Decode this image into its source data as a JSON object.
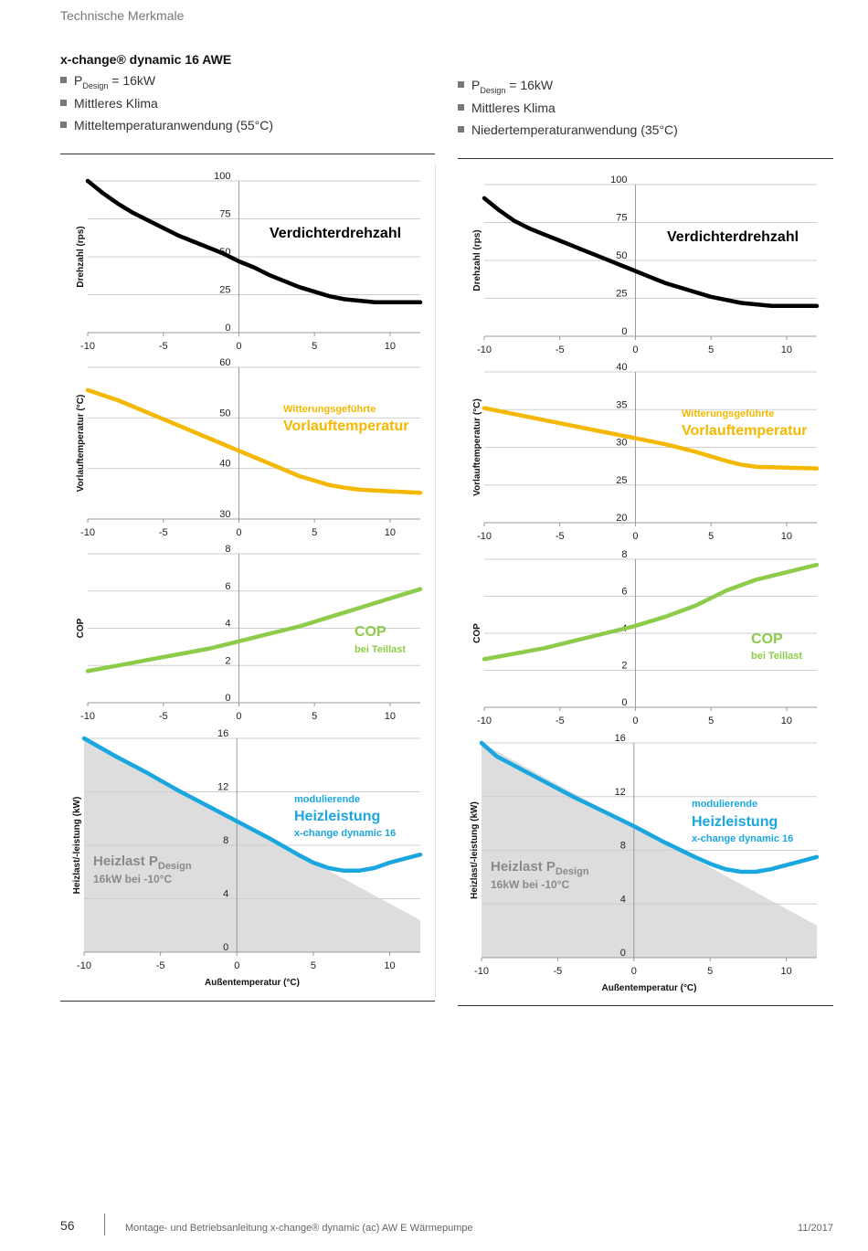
{
  "header": {
    "section": "Technische Merkmale"
  },
  "left": {
    "title": "x-change® dynamic 16 AWE",
    "bullets": [
      {
        "main": "P",
        "sub": "Design",
        "rest": " = 16kW"
      },
      {
        "main": "Mittleres Klima",
        "sub": "",
        "rest": ""
      },
      {
        "main": "Mitteltemperaturanwendung (55°C)",
        "sub": "",
        "rest": ""
      }
    ]
  },
  "right": {
    "bullets": [
      {
        "main": "P",
        "sub": "Design",
        "rest": " = 16kW"
      },
      {
        "main": "Mittleres Klima",
        "sub": "",
        "rest": ""
      },
      {
        "main": "Niedertemperaturanwendung (35°C)",
        "sub": "",
        "rest": ""
      }
    ]
  },
  "colors": {
    "speed": "#000000",
    "flow": "#F5B800",
    "cop": "#8DCB4A",
    "power": "#1AA7E0",
    "load_fill": "#DDDDDD",
    "load_text": "#8A8A8A"
  },
  "chart_data": [
    {
      "type": "line",
      "id": "left-speed",
      "column": "left",
      "ylabel": "Drehzahl (rps)",
      "xlabel": "",
      "xlim": [
        -10,
        12
      ],
      "ylim": [
        0,
        100
      ],
      "xticks": [
        -10,
        -5,
        0,
        5,
        10
      ],
      "yticks": [
        0,
        25,
        50,
        75,
        100
      ],
      "annotations": [
        {
          "text": "Verdichterdrehzahl",
          "style": "title",
          "color": "#000000"
        }
      ],
      "series": [
        {
          "color": "#000000",
          "x": [
            -10,
            -9,
            -8,
            -7,
            -6,
            -5,
            -4,
            -3,
            -2,
            -1,
            0,
            1,
            2,
            3,
            4,
            5,
            6,
            7,
            8,
            9,
            10,
            11,
            12
          ],
          "y": [
            100,
            92,
            85,
            79,
            74,
            69,
            64,
            60,
            56,
            52,
            47,
            43,
            38,
            34,
            30,
            27,
            24,
            22,
            21,
            20,
            20,
            20,
            20
          ]
        }
      ]
    },
    {
      "type": "line",
      "id": "left-flow",
      "column": "left",
      "ylabel": "Vorlauftemperatur (°C)",
      "xlabel": "",
      "xlim": [
        -10,
        12
      ],
      "ylim": [
        30,
        60
      ],
      "xticks": [
        -10,
        -5,
        0,
        5,
        10
      ],
      "yticks": [
        30,
        40,
        50,
        60
      ],
      "annotations": [
        {
          "text": "Witterungsgeführte",
          "style": "small",
          "color": "#F5B800"
        },
        {
          "text": "Vorlauftemperatur",
          "style": "big",
          "color": "#F5B800"
        }
      ],
      "series": [
        {
          "color": "#F5B800",
          "x": [
            -10,
            -8,
            -6,
            -4,
            -2,
            0,
            2,
            4,
            6,
            7,
            8,
            10,
            12
          ],
          "y": [
            55.5,
            53.5,
            51,
            48.5,
            46,
            43.5,
            41,
            38.5,
            36.7,
            36.2,
            35.8,
            35.5,
            35.2
          ]
        }
      ]
    },
    {
      "type": "line",
      "id": "left-cop",
      "column": "left",
      "ylabel": "COP",
      "xlabel": "",
      "xlim": [
        -10,
        12
      ],
      "ylim": [
        0,
        8
      ],
      "xticks": [
        -10,
        -5,
        0,
        5,
        10
      ],
      "yticks": [
        0,
        2,
        4,
        6,
        8
      ],
      "annotations": [
        {
          "text": "COP",
          "style": "big",
          "color": "#8DCB4A"
        },
        {
          "text": "bei Teillast",
          "style": "small",
          "color": "#8DCB4A"
        }
      ],
      "series": [
        {
          "color": "#8DCB4A",
          "x": [
            -10,
            -8,
            -6,
            -4,
            -2,
            0,
            2,
            4,
            6,
            8,
            10,
            12
          ],
          "y": [
            1.7,
            2.0,
            2.3,
            2.6,
            2.9,
            3.3,
            3.7,
            4.1,
            4.6,
            5.1,
            5.6,
            6.1
          ]
        }
      ]
    },
    {
      "type": "line",
      "id": "left-power",
      "column": "left",
      "ylabel": "Heizlast/-leistung (kW)",
      "xlabel": "Außentemperatur (°C)",
      "xlim": [
        -10,
        12
      ],
      "ylim": [
        0,
        16
      ],
      "xticks": [
        -10,
        -5,
        0,
        5,
        10
      ],
      "yticks": [
        0,
        4,
        8,
        12,
        16
      ],
      "area": {
        "color": "#DDDDDD",
        "x": [
          -10,
          12
        ],
        "y": [
          16,
          2.4
        ]
      },
      "annotations": [
        {
          "text": "modulierende",
          "style": "small",
          "color": "#1AA7E0"
        },
        {
          "text": "Heizleistung",
          "style": "big",
          "color": "#1AA7E0"
        },
        {
          "text": "x-change dynamic 16",
          "style": "small",
          "color": "#1AA7E0"
        },
        {
          "text": "Heizlast P",
          "sub": "Design",
          "style": "gbig",
          "color": "#8A8A8A"
        },
        {
          "text": "16kW bei -10°C",
          "style": "gsmall",
          "color": "#8A8A8A"
        }
      ],
      "series": [
        {
          "color": "#1AA7E0",
          "x": [
            -10,
            -8,
            -6,
            -4,
            -2,
            0,
            2,
            4,
            5,
            6,
            7,
            8,
            9,
            10,
            11,
            12
          ],
          "y": [
            16,
            14.7,
            13.5,
            12.2,
            11,
            9.8,
            8.6,
            7.3,
            6.7,
            6.3,
            6.1,
            6.1,
            6.3,
            6.7,
            7.0,
            7.3
          ]
        }
      ]
    },
    {
      "type": "line",
      "id": "right-speed",
      "column": "right",
      "ylabel": "Drehzahl (rps)",
      "xlabel": "",
      "xlim": [
        -10,
        12
      ],
      "ylim": [
        0,
        100
      ],
      "xticks": [
        -10,
        -5,
        0,
        5,
        10
      ],
      "yticks": [
        0,
        25,
        50,
        75,
        100
      ],
      "annotations": [
        {
          "text": "Verdichterdrehzahl",
          "style": "title",
          "color": "#000000"
        }
      ],
      "series": [
        {
          "color": "#000000",
          "x": [
            -10,
            -9,
            -8,
            -7,
            -6,
            -5,
            -4,
            -3,
            -2,
            -1,
            0,
            1,
            2,
            3,
            4,
            5,
            6,
            7,
            8,
            9,
            10,
            11,
            12
          ],
          "y": [
            91,
            83,
            76,
            71,
            67,
            63,
            59,
            55,
            51,
            47,
            43,
            39,
            35,
            32,
            29,
            26,
            24,
            22,
            21,
            20,
            20,
            20,
            20
          ]
        }
      ]
    },
    {
      "type": "line",
      "id": "right-flow",
      "column": "right",
      "ylabel": "Vorlauftemperatur (°C)",
      "xlabel": "",
      "xlim": [
        -10,
        12
      ],
      "ylim": [
        20,
        40
      ],
      "xticks": [
        -10,
        -5,
        0,
        5,
        10
      ],
      "yticks": [
        20,
        25,
        30,
        35,
        40
      ],
      "annotations": [
        {
          "text": "Witterungsgeführte",
          "style": "small",
          "color": "#F5B800"
        },
        {
          "text": "Vorlauftemperatur",
          "style": "big",
          "color": "#F5B800"
        }
      ],
      "series": [
        {
          "color": "#F5B800",
          "x": [
            -10,
            -8,
            -6,
            -4,
            -2,
            0,
            2,
            4,
            6,
            7,
            8,
            10,
            12
          ],
          "y": [
            35.2,
            34.4,
            33.6,
            32.8,
            32,
            31.2,
            30.4,
            29.4,
            28.2,
            27.7,
            27.4,
            27.3,
            27.2
          ]
        }
      ]
    },
    {
      "type": "line",
      "id": "right-cop",
      "column": "right",
      "ylabel": "COP",
      "xlabel": "",
      "xlim": [
        -10,
        12
      ],
      "ylim": [
        0,
        8
      ],
      "xticks": [
        -10,
        -5,
        0,
        5,
        10
      ],
      "yticks": [
        0,
        2,
        4,
        6,
        8
      ],
      "annotations": [
        {
          "text": "COP",
          "style": "big",
          "color": "#8DCB4A"
        },
        {
          "text": "bei Teillast",
          "style": "small",
          "color": "#8DCB4A"
        }
      ],
      "series": [
        {
          "color": "#8DCB4A",
          "x": [
            -10,
            -8,
            -6,
            -4,
            -2,
            0,
            2,
            4,
            6,
            8,
            10,
            12
          ],
          "y": [
            2.6,
            2.9,
            3.2,
            3.6,
            4.0,
            4.4,
            4.9,
            5.5,
            6.3,
            6.9,
            7.3,
            7.7
          ]
        }
      ]
    },
    {
      "type": "line",
      "id": "right-power",
      "column": "right",
      "ylabel": "Heizlast/-leistung (kW)",
      "xlabel": "Außentemperatur (°C)",
      "xlim": [
        -10,
        12
      ],
      "ylim": [
        0,
        16
      ],
      "xticks": [
        -10,
        -5,
        0,
        5,
        10
      ],
      "yticks": [
        0,
        4,
        8,
        12,
        16
      ],
      "area": {
        "color": "#DDDDDD",
        "x": [
          -10,
          12
        ],
        "y": [
          16,
          2.4
        ]
      },
      "annotations": [
        {
          "text": "modulierende",
          "style": "small",
          "color": "#1AA7E0"
        },
        {
          "text": "Heizleistung",
          "style": "big",
          "color": "#1AA7E0"
        },
        {
          "text": "x-change dynamic 16",
          "style": "small",
          "color": "#1AA7E0"
        },
        {
          "text": "Heizlast P",
          "sub": "Design",
          "style": "gbig",
          "color": "#8A8A8A"
        },
        {
          "text": "16kW bei -10°C",
          "style": "gsmall",
          "color": "#8A8A8A"
        }
      ],
      "series": [
        {
          "color": "#1AA7E0",
          "x": [
            -10,
            -9,
            -8,
            -6,
            -4,
            -2,
            0,
            2,
            4,
            5,
            6,
            7,
            8,
            9,
            10,
            11,
            12
          ],
          "y": [
            16,
            15,
            14.4,
            13.2,
            12,
            10.9,
            9.8,
            8.6,
            7.5,
            7.0,
            6.6,
            6.4,
            6.4,
            6.6,
            6.9,
            7.2,
            7.5
          ]
        }
      ]
    }
  ],
  "footer": {
    "page": "56",
    "text": "Montage- und Betriebsanleitung x-change® dynamic (ac) AW E Wärmepumpe",
    "date": "11/2017"
  }
}
